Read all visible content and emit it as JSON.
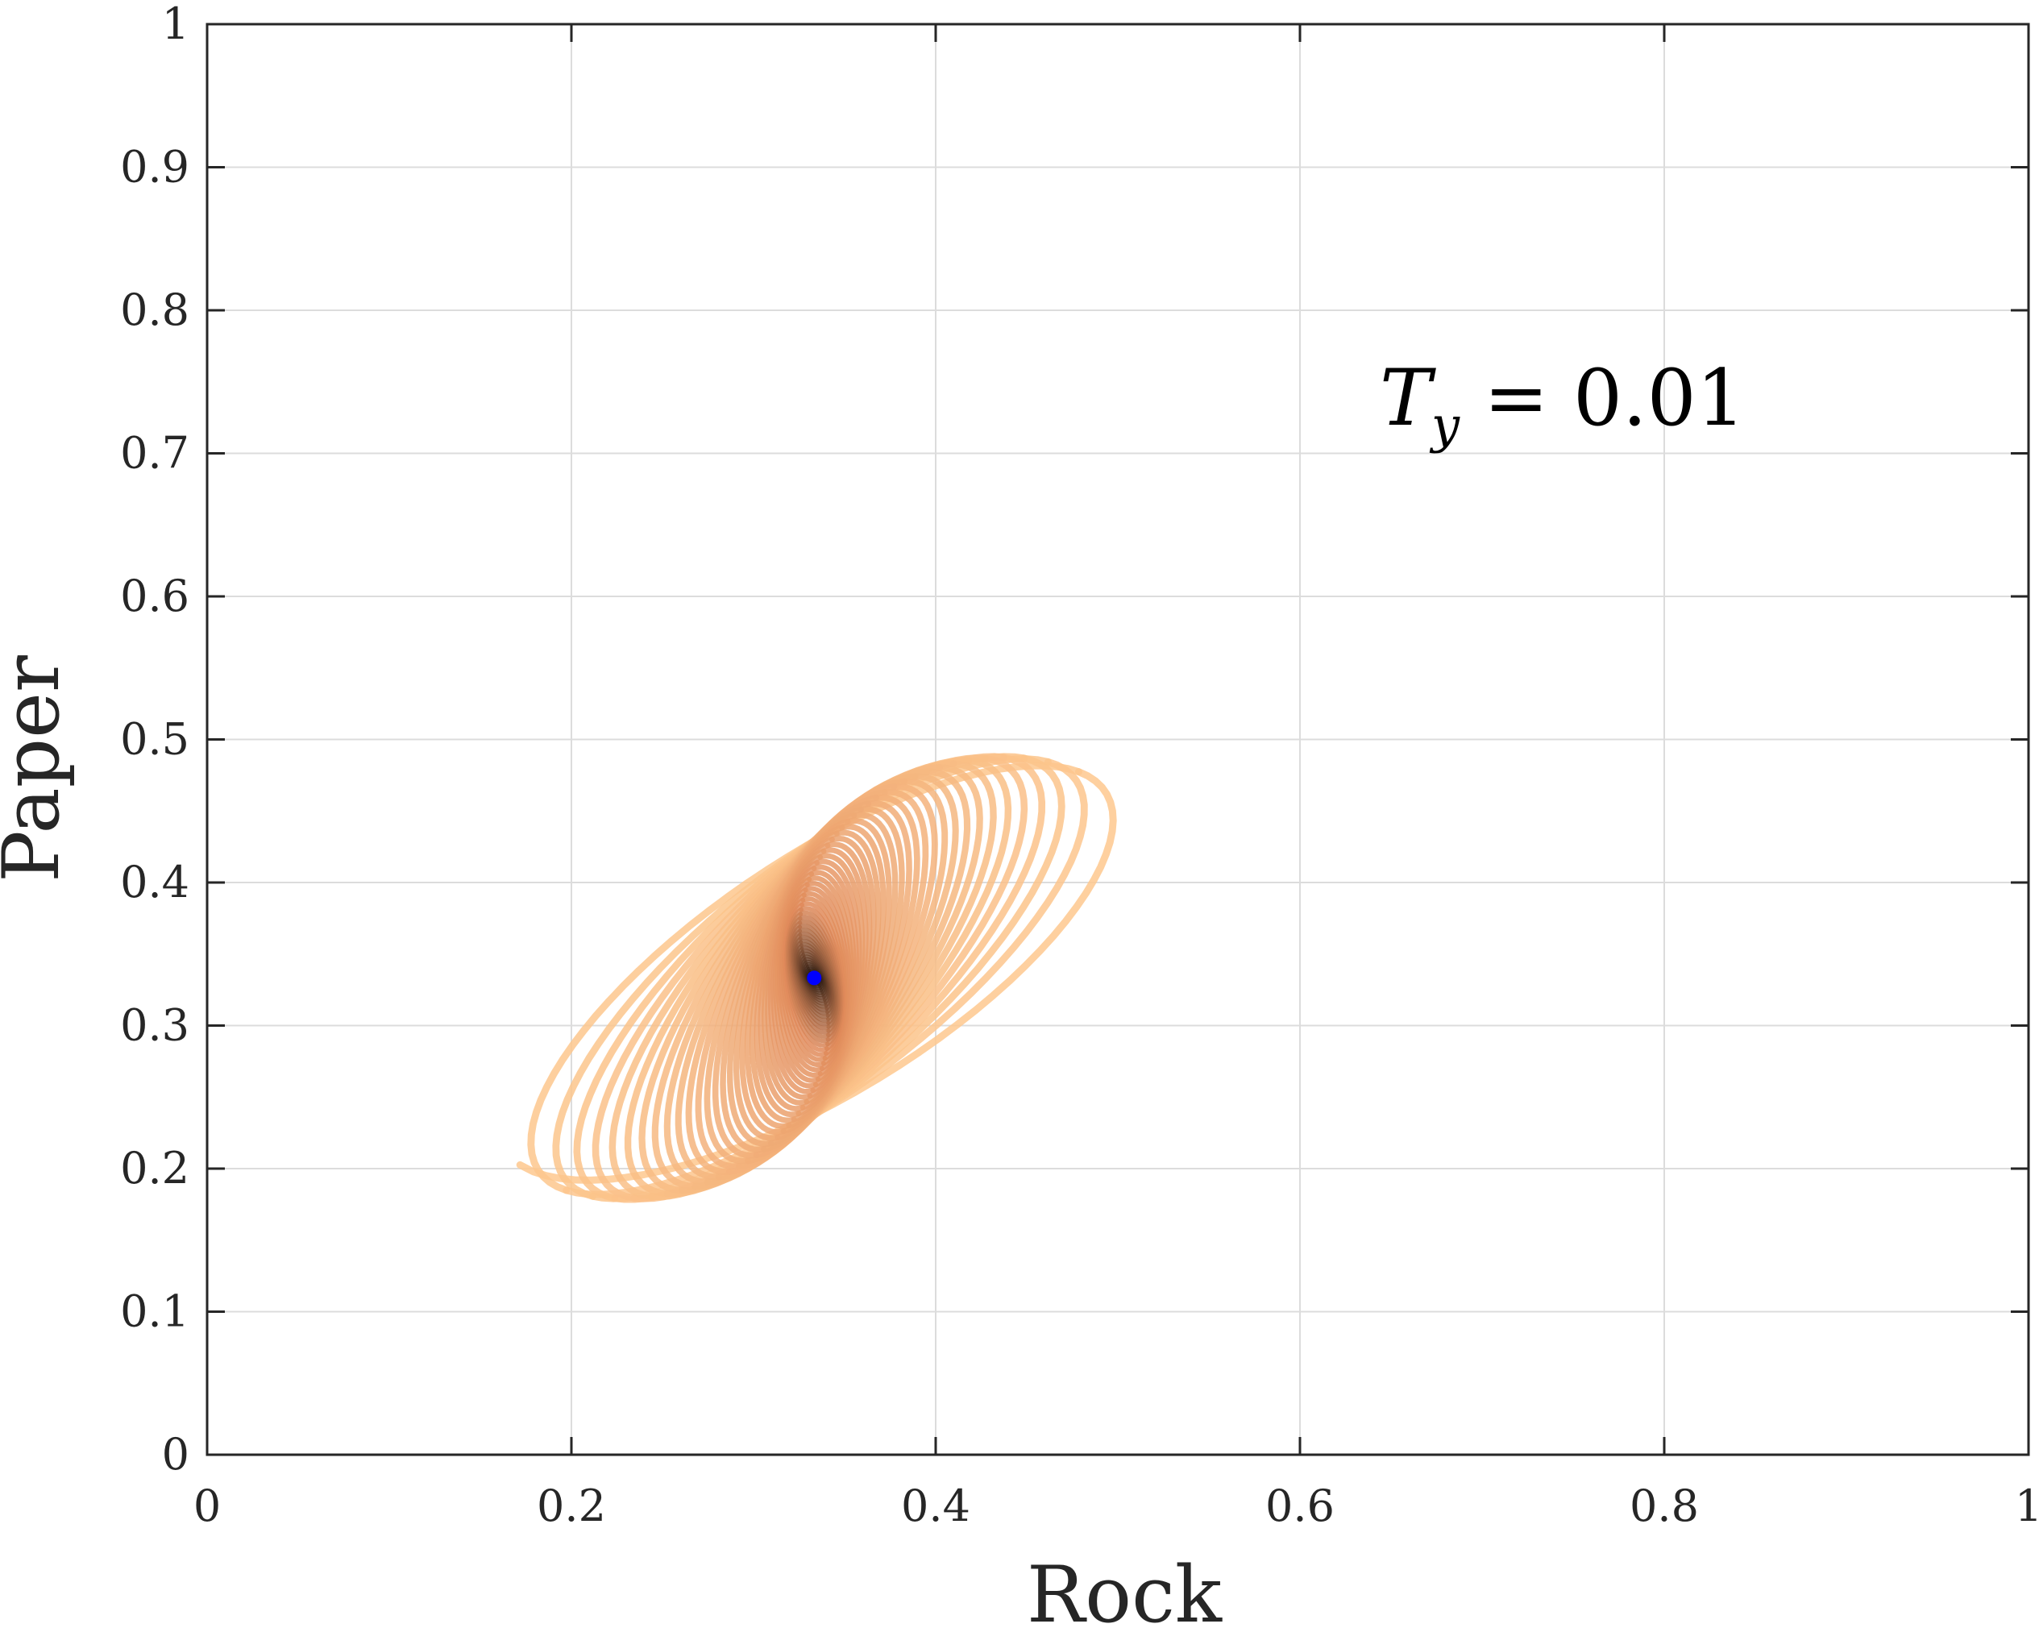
{
  "chart_data": {
    "type": "line",
    "title": "",
    "xlabel": "Rock",
    "ylabel": "Paper",
    "xlim": [
      0,
      1
    ],
    "ylim": [
      0,
      1
    ],
    "xticks": [
      0,
      0.2,
      0.4,
      0.6,
      0.8,
      1
    ],
    "yticks": [
      0,
      0.1,
      0.2,
      0.3,
      0.4,
      0.5,
      0.6,
      0.7,
      0.8,
      0.9,
      1
    ],
    "xtick_labels": [
      "0",
      "0.2",
      "0.4",
      "0.6",
      "0.8",
      "1"
    ],
    "ytick_labels": [
      "0",
      "0.1",
      "0.2",
      "0.3",
      "0.4",
      "0.5",
      "0.6",
      "0.7",
      "0.8",
      "0.9",
      "1"
    ],
    "grid": true,
    "annotation": {
      "symbol": "T",
      "subscript": "y",
      "relation": "= 0.01"
    },
    "trajectory": {
      "description": "spiral converging to interior fixed point",
      "start": [
        0.14,
        0.25
      ],
      "end": [
        0.333,
        0.333
      ],
      "rock_range": [
        0.13,
        0.505
      ],
      "paper_range": [
        0.155,
        0.525
      ],
      "color_start": "#fec98f",
      "color_end": "#000000"
    },
    "fixed_point": {
      "x": 0.3333,
      "y": 0.3333,
      "color": "#0000ff"
    }
  }
}
